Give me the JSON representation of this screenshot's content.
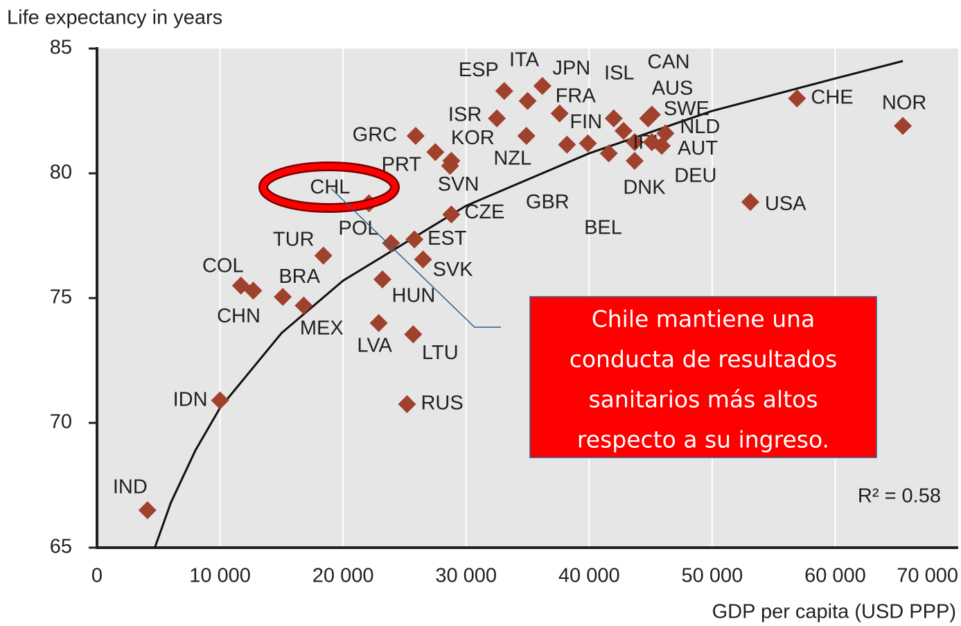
{
  "chart_data": {
    "type": "scatter",
    "y_label": "Life expectancy in years",
    "x_label": "GDP per capita (USD PPP)",
    "annotation": "R² = 0.58",
    "callout": [
      "Chile mantiene una",
      "conducta de resultados",
      "sanitarios más altos",
      "respecto a su ingreso."
    ],
    "color": "#a0412d",
    "labels": [
      "IND",
      "IDN",
      "COL",
      "CHN",
      "BRA",
      "MEX",
      "TUR",
      "CHL",
      "POL",
      "HUN",
      "LVA",
      "LTU",
      "RUS",
      "EST",
      "SVK",
      "CZE",
      "GRC",
      "KOR",
      "PRT",
      "SVN",
      "ISR",
      "NZL",
      "ESP",
      "ITA",
      "JPN",
      "FRA",
      "GBR",
      "BEL",
      "FIN",
      "ISL",
      "CAN",
      "IRL",
      "DNK",
      "AUS",
      "SWE",
      "NLD",
      "AUT",
      "DEU",
      "CHE",
      "NOR",
      "USA"
    ],
    "x": [
      4100,
      10000,
      11700,
      12700,
      15100,
      16800,
      18400,
      22100,
      23900,
      23200,
      22900,
      25700,
      25200,
      25800,
      26500,
      28800,
      25900,
      27500,
      28800,
      28700,
      32500,
      34900,
      33100,
      35000,
      36200,
      37600,
      38200,
      39900,
      41600,
      42000,
      42800,
      43700,
      43700,
      44800,
      45100,
      46200,
      45900,
      45100,
      56900,
      65500,
      53100
    ],
    "y": [
      66.5,
      70.9,
      75.5,
      75.3,
      75.05,
      74.7,
      76.7,
      78.8,
      77.2,
      75.75,
      74.0,
      73.55,
      70.75,
      77.35,
      76.55,
      78.35,
      81.5,
      80.85,
      80.5,
      80.3,
      82.2,
      81.5,
      83.3,
      82.9,
      83.5,
      82.4,
      81.15,
      81.2,
      80.8,
      82.2,
      81.7,
      81.25,
      80.5,
      82.2,
      82.35,
      81.6,
      81.1,
      81.25,
      83.0,
      81.9,
      78.85
    ],
    "trendline": {
      "x": [
        4700,
        6000,
        8000,
        10000,
        15000,
        20000,
        30000,
        40000,
        50000,
        60000,
        65500
      ],
      "y": [
        65,
        66.8,
        68.9,
        70.6,
        73.6,
        75.7,
        78.7,
        80.8,
        82.5,
        83.8,
        84.5
      ]
    },
    "xlim": [
      0,
      70000
    ],
    "ylim": [
      65,
      85
    ],
    "xticks": [
      0,
      {
        "value": 10000,
        "label": "10 000"
      },
      {
        "value": 20000,
        "label": "20 000"
      },
      {
        "value": 30000,
        "label": "30 000"
      },
      {
        "value": 40000,
        "label": "40 000"
      },
      {
        "value": 50000,
        "label": "50 000"
      },
      {
        "value": 60000,
        "label": "60 000"
      },
      {
        "value": 70000,
        "label": "70 000"
      }
    ],
    "yticks": [
      65,
      70,
      75,
      80,
      85
    ],
    "grid": true
  }
}
